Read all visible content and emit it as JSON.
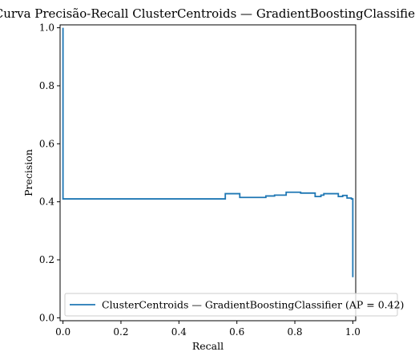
{
  "chart_data": {
    "type": "line",
    "title": "Curva Precisão-Recall ClusterCentroids — GradientBoostingClassifier",
    "xlabel": "Recall",
    "ylabel": "Precision",
    "xlim": [
      -0.01,
      1.01
    ],
    "ylim": [
      -0.01,
      1.01
    ],
    "x_ticks": [
      0.0,
      0.2,
      0.4,
      0.6,
      0.8,
      1.0
    ],
    "x_tick_labels": [
      "0.0",
      "0.2",
      "0.4",
      "0.6",
      "0.8",
      "1.0"
    ],
    "y_ticks": [
      0.0,
      0.2,
      0.4,
      0.6,
      0.8,
      1.0
    ],
    "y_tick_labels": [
      "0.0",
      "0.2",
      "0.4",
      "0.6",
      "0.8",
      "1.0"
    ],
    "grid": false,
    "legend_position": "lower-right",
    "step": "post",
    "series": [
      {
        "name": "ClusterCentroids — GradientBoostingClassifier (AP = 0.42)",
        "color": "#1f77b4",
        "points": [
          [
            0.0,
            1.0
          ],
          [
            0.0,
            0.41
          ],
          [
            0.56,
            0.41
          ],
          [
            0.56,
            0.428
          ],
          [
            0.61,
            0.428
          ],
          [
            0.61,
            0.415
          ],
          [
            0.7,
            0.415
          ],
          [
            0.7,
            0.42
          ],
          [
            0.73,
            0.42
          ],
          [
            0.73,
            0.423
          ],
          [
            0.77,
            0.423
          ],
          [
            0.77,
            0.433
          ],
          [
            0.82,
            0.433
          ],
          [
            0.82,
            0.43
          ],
          [
            0.87,
            0.43
          ],
          [
            0.87,
            0.418
          ],
          [
            0.89,
            0.418
          ],
          [
            0.89,
            0.423
          ],
          [
            0.9,
            0.423
          ],
          [
            0.9,
            0.428
          ],
          [
            0.95,
            0.428
          ],
          [
            0.95,
            0.418
          ],
          [
            0.965,
            0.418
          ],
          [
            0.965,
            0.422
          ],
          [
            0.98,
            0.422
          ],
          [
            0.98,
            0.413
          ],
          [
            0.995,
            0.413
          ],
          [
            0.995,
            0.41
          ],
          [
            1.0,
            0.41
          ],
          [
            1.0,
            0.14
          ]
        ]
      }
    ]
  }
}
